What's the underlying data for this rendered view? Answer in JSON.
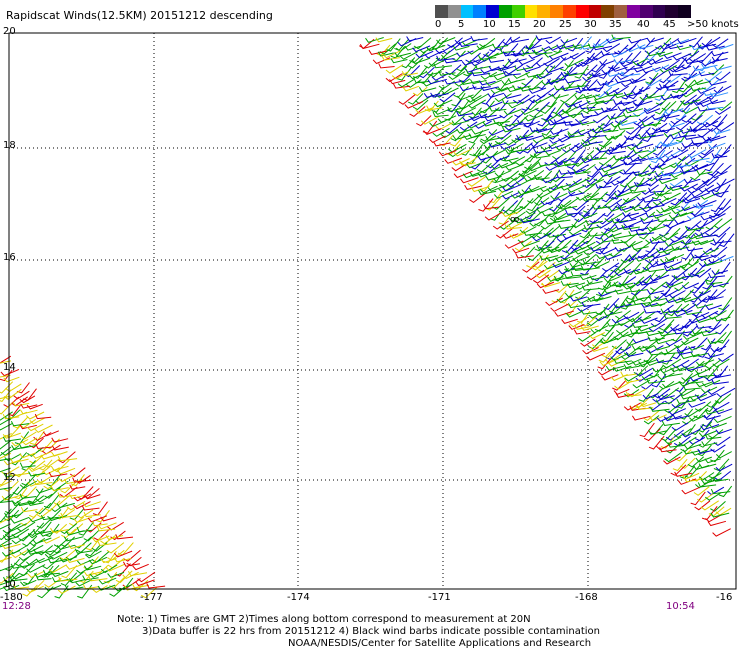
{
  "header": {
    "title": "Rapidscat Winds(12.5KM) 20151212 descending"
  },
  "legend": {
    "labels": [
      "0",
      "5",
      "10",
      "15",
      "20",
      "25",
      "30",
      "35",
      "40",
      "45",
      ">50 knots"
    ],
    "colors": [
      "#505050",
      "#909090",
      "#00c0ff",
      "#0080ff",
      "#0000d0",
      "#00a000",
      "#40d000",
      "#ffe000",
      "#ffb000",
      "#ff8000",
      "#ff4000",
      "#ff0000",
      "#c00000",
      "#804000",
      "#a06040",
      "#8000a0",
      "#500070",
      "#300050",
      "#200030",
      "#100020"
    ]
  },
  "map": {
    "lat_labels": [
      "20",
      "18",
      "16",
      "14",
      "12",
      "10"
    ],
    "lon_labels": [
      "-180",
      "-177",
      "-174",
      "-171",
      "-168",
      "-16"
    ],
    "time_labels": {
      "start": "12:28",
      "end": "10:54"
    },
    "colors": {
      "blue": "#0000cc",
      "green": "#00a000",
      "yellow": "#e0d000",
      "red": "#e00000",
      "lightblue": "#3090ff"
    }
  },
  "notes": [
    "Note: 1) Times are GMT 2)Times along bottom correspond to measurement at 20N",
    "3)Data buffer is 22 hrs from 20151212 4) Black wind barbs indicate possible contamination",
    "NOAA/NESDIS/Center for Satellite Applications and Research"
  ]
}
